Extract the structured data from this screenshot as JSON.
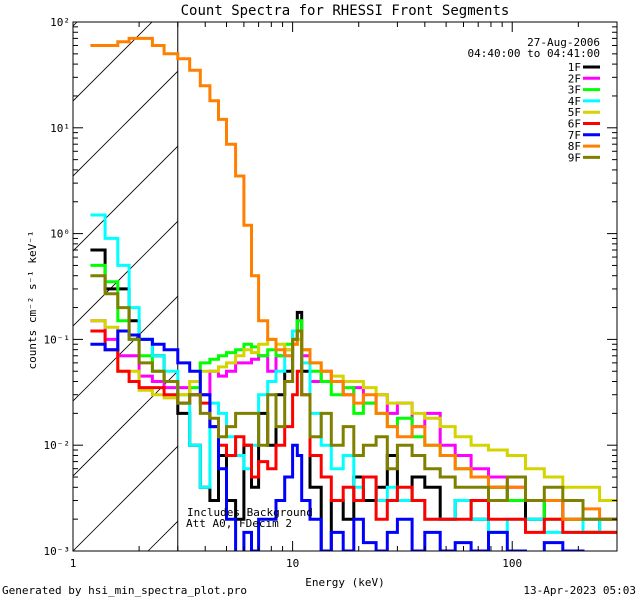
{
  "chart_data": {
    "type": "line",
    "step": true,
    "title": "Count Spectra for RHESSI Front Segments",
    "xlabel": "Energy (keV)",
    "ylabel": "counts cm⁻² s⁻¹ keV⁻¹",
    "xscale": "log",
    "yscale": "log",
    "xlim": [
      1,
      300
    ],
    "ylim": [
      0.001,
      100
    ],
    "xticks": [
      1,
      10,
      100
    ],
    "xtick_labels": [
      "1",
      "10",
      "100"
    ],
    "yticks": [
      100,
      10,
      1,
      0.1,
      0.01,
      0.001
    ],
    "ytick_labels": [
      "10²",
      "10¹",
      "10⁰",
      "10⁻¹",
      "10⁻²",
      "10⁻³"
    ],
    "date": "27-Aug-2006",
    "time_range": "04:40:00 to 04:41:00",
    "annotation_lines": [
      "Includes Background",
      "Att A0, FDecim 2"
    ],
    "hatched_region_keV": [
      1,
      3
    ],
    "legend_position": "top-right",
    "bin_edges_keV": [
      1.2,
      1.4,
      1.6,
      1.8,
      2.0,
      2.3,
      2.6,
      3.0,
      3.4,
      3.8,
      4.2,
      4.6,
      5.0,
      5.5,
      6.0,
      6.5,
      7.0,
      7.7,
      8.4,
      9.2,
      10,
      10.5,
      11,
      12,
      13.5,
      15,
      17,
      19,
      21,
      24,
      27,
      30,
      35,
      40,
      47,
      55,
      65,
      78,
      95,
      115,
      140,
      170,
      210,
      250,
      300
    ],
    "series": [
      {
        "name": "1F",
        "color": "#000000",
        "values": [
          0.7,
          0.3,
          0.3,
          0.15,
          0.1,
          0.07,
          0.04,
          0.02,
          0.01,
          0.004,
          0.003,
          0.008,
          0.003,
          0.002,
          0.01,
          0.004,
          0.02,
          0.01,
          0.03,
          0.05,
          0.1,
          0.18,
          0.05,
          0.004,
          0.001,
          0.003,
          0.002,
          0.005,
          0.003,
          0.004,
          0.008,
          0.003,
          0.005,
          0.004,
          0.002,
          0.003,
          0.002,
          0.004,
          0.003,
          0.002,
          0.003,
          0.002,
          0.0015,
          0.002
        ]
      },
      {
        "name": "2F",
        "color": "#ff00ff",
        "values": [
          0.15,
          0.1,
          0.07,
          0.07,
          0.045,
          0.04,
          0.035,
          0.035,
          0.03,
          0.03,
          0.05,
          0.045,
          0.05,
          0.06,
          0.06,
          0.065,
          0.07,
          0.05,
          0.07,
          0.08,
          0.1,
          0.12,
          0.07,
          0.04,
          0.05,
          0.04,
          0.03,
          0.035,
          0.025,
          0.03,
          0.02,
          0.025,
          0.015,
          0.02,
          0.01,
          0.008,
          0.006,
          0.005,
          0.004,
          0.003,
          0.003,
          0.003,
          0.002,
          0.002
        ]
      },
      {
        "name": "3F",
        "color": "#00ff00",
        "values": [
          0.5,
          0.35,
          0.15,
          0.1,
          0.07,
          0.05,
          0.04,
          0.03,
          0.035,
          0.06,
          0.065,
          0.07,
          0.075,
          0.08,
          0.09,
          0.085,
          0.07,
          0.08,
          0.07,
          0.09,
          0.12,
          0.15,
          0.08,
          0.05,
          0.04,
          0.03,
          0.035,
          0.02,
          0.025,
          0.02,
          0.015,
          0.018,
          0.012,
          0.01,
          0.008,
          0.006,
          0.005,
          0.004,
          0.003,
          0.003,
          0.002,
          0.002,
          0.0015,
          0.0015
        ]
      },
      {
        "name": "4F",
        "color": "#00ffff",
        "values": [
          1.5,
          0.9,
          0.5,
          0.2,
          0.1,
          0.07,
          0.05,
          0.025,
          0.01,
          0.004,
          0.025,
          0.02,
          0.012,
          0.008,
          0.006,
          0.01,
          0.03,
          0.04,
          0.05,
          0.07,
          0.12,
          0.1,
          0.06,
          0.02,
          0.01,
          0.006,
          0.008,
          0.004,
          0.005,
          0.003,
          0.004,
          0.003,
          0.003,
          0.002,
          0.002,
          0.003,
          0.002,
          0.0015,
          0.002,
          0.002,
          0.0015,
          0.0015,
          0.002,
          0.0015
        ]
      },
      {
        "name": "5F",
        "color": "#d4d400",
        "values": [
          0.15,
          0.13,
          0.05,
          0.05,
          0.033,
          0.03,
          0.028,
          0.03,
          0.04,
          0.05,
          0.05,
          0.055,
          0.06,
          0.07,
          0.08,
          0.075,
          0.09,
          0.1,
          0.09,
          0.08,
          0.09,
          0.1,
          0.08,
          0.06,
          0.05,
          0.045,
          0.04,
          0.04,
          0.035,
          0.03,
          0.025,
          0.025,
          0.02,
          0.018,
          0.015,
          0.012,
          0.01,
          0.009,
          0.008,
          0.006,
          0.005,
          0.004,
          0.004,
          0.003
        ]
      },
      {
        "name": "6F",
        "color": "#ff0000",
        "values": [
          0.12,
          0.08,
          0.05,
          0.04,
          0.035,
          0.035,
          0.03,
          0.025,
          0.03,
          0.025,
          0.015,
          0.01,
          0.008,
          0.012,
          0.01,
          0.005,
          0.007,
          0.006,
          0.01,
          0.015,
          0.03,
          0.05,
          0.03,
          0.008,
          0.005,
          0.003,
          0.004,
          0.003,
          0.005,
          0.002,
          0.003,
          0.004,
          0.003,
          0.002,
          0.002,
          0.002,
          0.003,
          0.002,
          0.002,
          0.0015,
          0.002,
          0.0015,
          0.0015,
          0.0015
        ]
      },
      {
        "name": "7F",
        "color": "#0000ff",
        "values": [
          0.09,
          0.08,
          0.12,
          0.11,
          0.1,
          0.09,
          0.08,
          0.06,
          0.05,
          0.03,
          0.015,
          0.006,
          0.002,
          0.0009,
          0.0015,
          0.001,
          0.002,
          0.002,
          0.003,
          0.005,
          0.01,
          0.008,
          0.003,
          0.002,
          0.001,
          0.0015,
          0.001,
          0.002,
          0.0012,
          0.001,
          0.0015,
          0.002,
          0.001,
          0.0015,
          0.001,
          0.0012,
          0.001,
          0.0015,
          0.001,
          0.0009,
          0.0012,
          0.001,
          0.0009,
          0.0009
        ]
      },
      {
        "name": "8F",
        "color": "#ff8000",
        "values": [
          60,
          60,
          65,
          70,
          70,
          60,
          50,
          45,
          35,
          25,
          18,
          12,
          7,
          3.5,
          1.2,
          0.4,
          0.15,
          0.1,
          0.08,
          0.07,
          0.09,
          0.12,
          0.08,
          0.06,
          0.05,
          0.04,
          0.03,
          0.025,
          0.03,
          0.02,
          0.015,
          0.012,
          0.015,
          0.01,
          0.008,
          0.006,
          0.005,
          0.004,
          0.004,
          0.003,
          0.003,
          0.002,
          0.0025,
          0.002
        ]
      },
      {
        "name": "9F",
        "color": "#808000",
        "values": [
          0.4,
          0.27,
          0.2,
          0.1,
          0.06,
          0.05,
          0.04,
          0.025,
          0.03,
          0.02,
          0.018,
          0.012,
          0.015,
          0.02,
          0.02,
          0.02,
          0.01,
          0.03,
          0.015,
          0.04,
          0.1,
          0.12,
          0.03,
          0.012,
          0.02,
          0.01,
          0.015,
          0.008,
          0.01,
          0.012,
          0.006,
          0.01,
          0.008,
          0.006,
          0.005,
          0.004,
          0.004,
          0.003,
          0.005,
          0.003,
          0.004,
          0.003,
          0.002,
          0.002
        ]
      }
    ]
  },
  "footer": {
    "generated_by": "Generated by hsi_min_spectra_plot.pro",
    "timestamp": "13-Apr-2023 05:03"
  }
}
